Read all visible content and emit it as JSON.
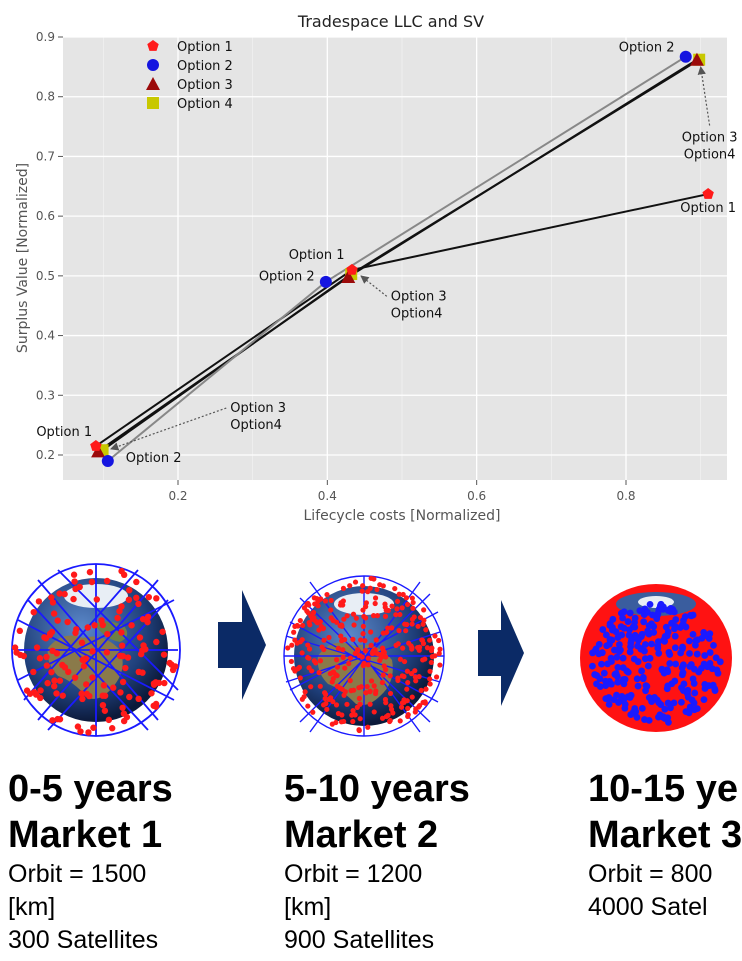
{
  "chart_data": {
    "type": "scatter",
    "title": "Tradespace LLC and SV",
    "xlabel": "Lifecycle costs [Normalized]",
    "ylabel": "Surplus Value [Normalized]",
    "xlim": [
      0.05,
      0.92
    ],
    "ylim": [
      0.17,
      0.9
    ],
    "x_ticks": [
      0.2,
      0.4,
      0.6,
      0.8
    ],
    "y_ticks": [
      0.2,
      0.3,
      0.4,
      0.5,
      0.6,
      0.7,
      0.8,
      0.9
    ],
    "grid": true,
    "legend_position": "top-left",
    "series": [
      {
        "name": "Option 1",
        "marker": "pentagon",
        "color": "#ff1a1a",
        "points": [
          [
            0.09,
            0.215
          ],
          [
            0.433,
            0.51
          ],
          [
            0.91,
            0.637
          ]
        ]
      },
      {
        "name": "Option 2",
        "marker": "circle",
        "color": "#1515e0",
        "points": [
          [
            0.106,
            0.19
          ],
          [
            0.398,
            0.49
          ],
          [
            0.88,
            0.867
          ]
        ]
      },
      {
        "name": "Option 3",
        "marker": "triangle",
        "color": "#9b0a0a",
        "points": [
          [
            0.093,
            0.206
          ],
          [
            0.428,
            0.498
          ],
          [
            0.895,
            0.862
          ]
        ]
      },
      {
        "name": "Option 4",
        "marker": "square",
        "color": "#c8c800",
        "points": [
          [
            0.099,
            0.208
          ],
          [
            0.432,
            0.503
          ],
          [
            0.898,
            0.862
          ]
        ]
      }
    ],
    "paths": [
      {
        "series": "Option 1",
        "color": "#111111",
        "points": [
          [
            0.09,
            0.215
          ],
          [
            0.433,
            0.51
          ],
          [
            0.91,
            0.637
          ]
        ]
      },
      {
        "series": "Option 3",
        "color": "#111111",
        "points": [
          [
            0.093,
            0.206
          ],
          [
            0.428,
            0.498
          ],
          [
            0.895,
            0.862
          ]
        ]
      },
      {
        "series": "Option 4",
        "color": "#111111",
        "points": [
          [
            0.099,
            0.208
          ],
          [
            0.432,
            0.503
          ],
          [
            0.898,
            0.862
          ]
        ]
      },
      {
        "series": "Option 2",
        "color": "#888888",
        "points": [
          [
            0.106,
            0.19
          ],
          [
            0.398,
            0.49
          ],
          [
            0.88,
            0.867
          ]
        ]
      }
    ],
    "annotations": [
      {
        "lines": [
          "Option 1"
        ],
        "x": 0.085,
        "y": 0.232,
        "anchor": "end"
      },
      {
        "lines": [
          "Option 2"
        ],
        "x": 0.13,
        "y": 0.188,
        "anchor": "start"
      },
      {
        "lines": [
          "Option 3",
          "Option4"
        ],
        "x": 0.27,
        "y": 0.272,
        "anchor": "start",
        "arrow_to": [
          0.11,
          0.21
        ]
      },
      {
        "lines": [
          "Option 1"
        ],
        "x": 0.423,
        "y": 0.528,
        "anchor": "end"
      },
      {
        "lines": [
          "Option 2"
        ],
        "x": 0.383,
        "y": 0.492,
        "anchor": "end"
      },
      {
        "lines": [
          "Option 3",
          "Option4"
        ],
        "x": 0.485,
        "y": 0.459,
        "anchor": "start",
        "arrow_to": [
          0.445,
          0.5
        ]
      },
      {
        "lines": [
          "Option 2"
        ],
        "x": 0.865,
        "y": 0.876,
        "anchor": "end"
      },
      {
        "lines": [
          "Option 3",
          "Option4"
        ],
        "x": 0.912,
        "y": 0.725,
        "anchor": "middle",
        "arrow_to": [
          0.9,
          0.85
        ]
      },
      {
        "lines": [
          "Option 1"
        ],
        "x": 0.91,
        "y": 0.607,
        "anchor": "middle"
      }
    ]
  },
  "markets": [
    {
      "years": "0-5 years",
      "name": "Market 1",
      "orbit": "Orbit = 1500",
      "orbit_unit": "[km]",
      "satellites": "300 Satellites"
    },
    {
      "years": "5-10 years",
      "name": "Market 2",
      "orbit": "Orbit = 1200",
      "orbit_unit": "[km]",
      "satellites": "900 Satellites"
    },
    {
      "years": "10-15 ye",
      "name": "Market 3",
      "orbit": "Orbit = 800",
      "orbit_unit": "",
      "satellites": "4000 Satel"
    }
  ],
  "colors": {
    "plot_background": "#e5e5e5",
    "grid": "#ffffff",
    "arrow": "#0b2a66",
    "satellite": "#ff1a1a",
    "orbit": "#1a1aff"
  },
  "icons": {
    "globe1": "earth-constellation-sparse-icon",
    "globe2": "earth-constellation-medium-icon",
    "globe3": "earth-constellation-dense-icon",
    "arrow": "right-arrow-icon"
  }
}
